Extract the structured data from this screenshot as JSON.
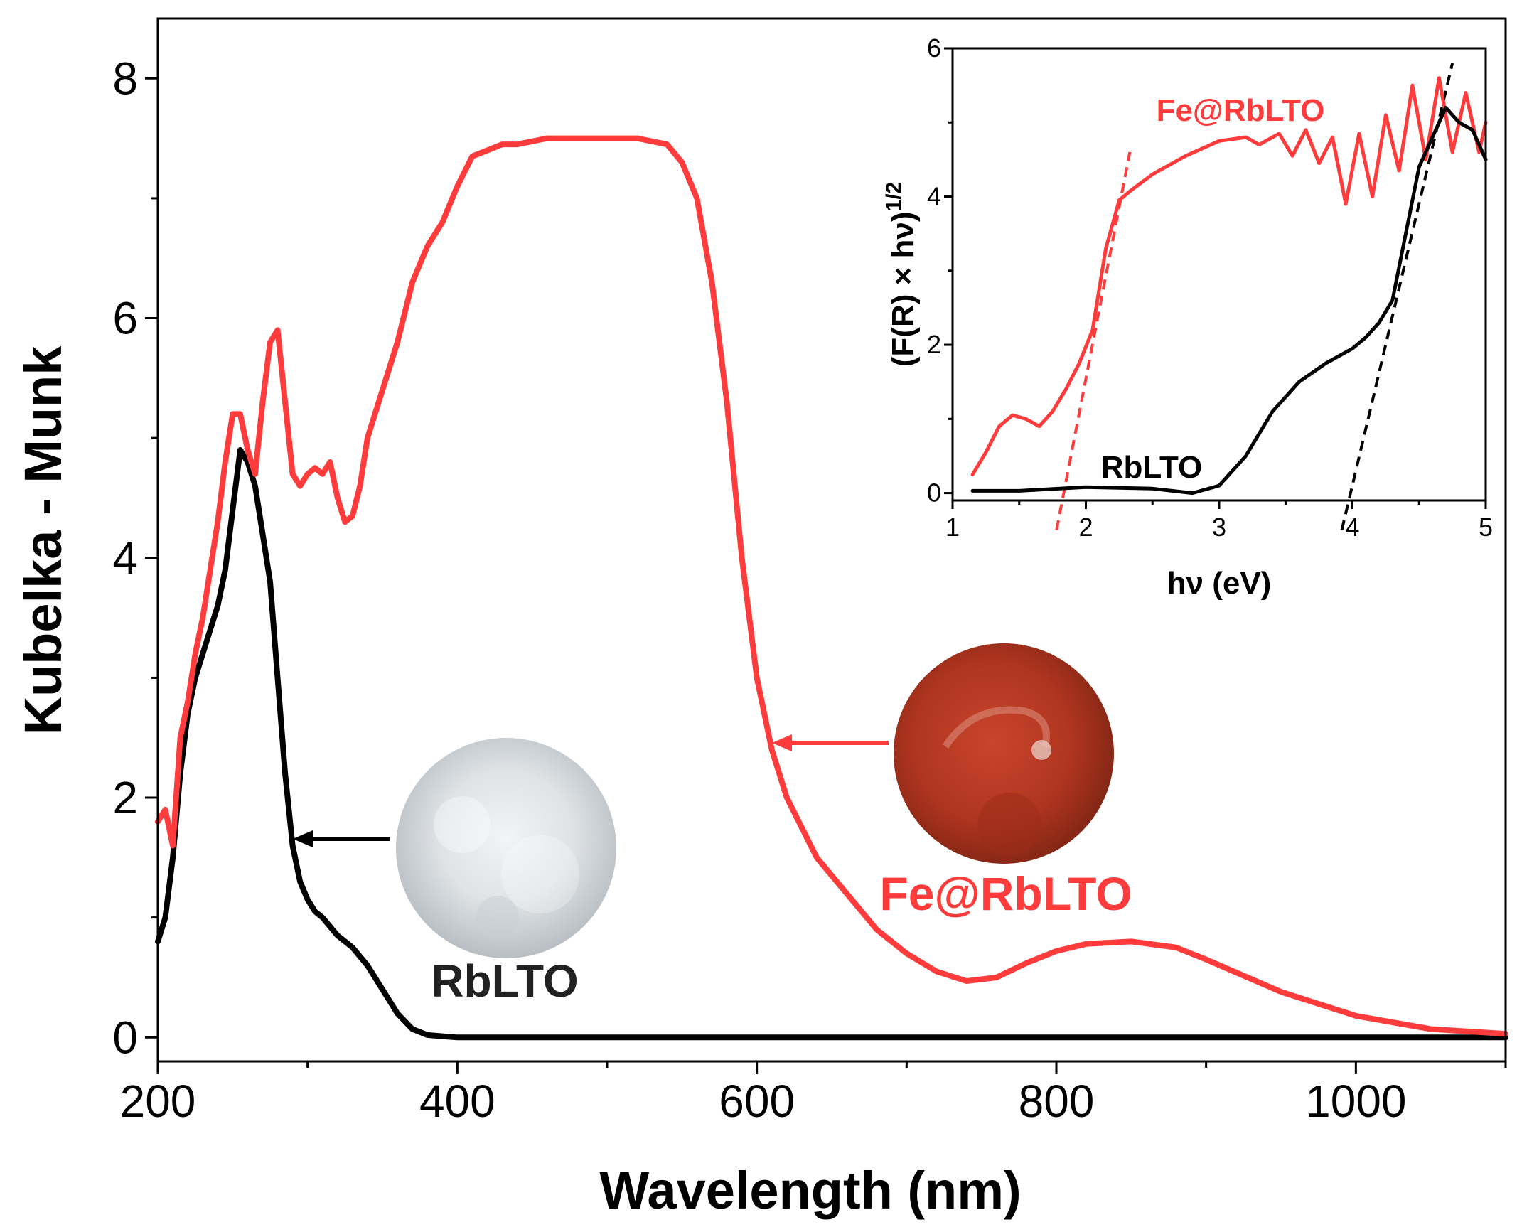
{
  "chart_data": [
    {
      "type": "line",
      "xlabel": "Wavelength (nm)",
      "ylabel": "Kubelka - Munk",
      "xlim": [
        200,
        1100
      ],
      "ylim": [
        -0.2,
        8.5
      ],
      "xticks": [
        200,
        400,
        600,
        800,
        1000
      ],
      "yticks": [
        0,
        2,
        4,
        6,
        8
      ],
      "grid": false,
      "series": [
        {
          "name": "RbLTO",
          "color": "#000000",
          "x": [
            200,
            205,
            210,
            215,
            220,
            225,
            230,
            235,
            240,
            245,
            250,
            255,
            260,
            265,
            270,
            275,
            280,
            285,
            290,
            295,
            300,
            305,
            310,
            320,
            330,
            340,
            350,
            360,
            370,
            380,
            390,
            400,
            420,
            450,
            500,
            600,
            700,
            800,
            900,
            1000,
            1100
          ],
          "y": [
            0.8,
            1.0,
            1.5,
            2.2,
            2.7,
            3.0,
            3.2,
            3.4,
            3.6,
            3.9,
            4.4,
            4.9,
            4.8,
            4.6,
            4.2,
            3.8,
            3.0,
            2.2,
            1.6,
            1.3,
            1.15,
            1.05,
            1.0,
            0.85,
            0.75,
            0.6,
            0.4,
            0.2,
            0.07,
            0.02,
            0.01,
            0.0,
            0.0,
            0.0,
            0.0,
            0.0,
            0.0,
            0.0,
            0.0,
            0.0,
            0.0
          ]
        },
        {
          "name": "Fe@RbLTO",
          "color": "#ff3b3b",
          "x": [
            200,
            205,
            210,
            215,
            220,
            225,
            230,
            235,
            240,
            245,
            250,
            255,
            260,
            265,
            270,
            275,
            280,
            285,
            290,
            295,
            300,
            305,
            310,
            315,
            320,
            325,
            330,
            335,
            340,
            350,
            360,
            370,
            380,
            390,
            400,
            410,
            420,
            430,
            440,
            460,
            480,
            500,
            520,
            540,
            550,
            560,
            570,
            580,
            590,
            600,
            610,
            620,
            640,
            660,
            680,
            700,
            720,
            740,
            760,
            780,
            800,
            820,
            850,
            880,
            900,
            950,
            1000,
            1050,
            1100
          ],
          "y": [
            1.8,
            1.9,
            1.6,
            2.5,
            2.8,
            3.2,
            3.5,
            3.9,
            4.3,
            4.8,
            5.2,
            5.2,
            4.9,
            4.7,
            5.3,
            5.8,
            5.9,
            5.3,
            4.7,
            4.6,
            4.7,
            4.75,
            4.7,
            4.8,
            4.5,
            4.3,
            4.35,
            4.6,
            5.0,
            5.4,
            5.8,
            6.3,
            6.6,
            6.8,
            7.1,
            7.35,
            7.4,
            7.45,
            7.45,
            7.5,
            7.5,
            7.5,
            7.5,
            7.45,
            7.3,
            7.0,
            6.3,
            5.3,
            4.0,
            3.0,
            2.4,
            2.0,
            1.5,
            1.2,
            0.9,
            0.7,
            0.55,
            0.47,
            0.5,
            0.62,
            0.72,
            0.78,
            0.8,
            0.75,
            0.65,
            0.38,
            0.18,
            0.07,
            0.03
          ]
        }
      ]
    },
    {
      "type": "line",
      "xlabel": "hν (eV)",
      "ylabel": "(F(R) × hν)",
      "ylabel_sup": "1/2",
      "xlim": [
        1,
        5
      ],
      "ylim": [
        -0.1,
        6
      ],
      "xticks": [
        1,
        2,
        3,
        4,
        5
      ],
      "yticks": [
        0,
        2,
        4,
        6
      ],
      "grid": false,
      "series": [
        {
          "name": "Fe@RbLTO",
          "color": "#ff3b3b",
          "x": [
            1.15,
            1.25,
            1.35,
            1.45,
            1.55,
            1.65,
            1.75,
            1.85,
            1.95,
            2.05,
            2.15,
            2.25,
            2.35,
            2.5,
            2.75,
            3.0,
            3.2,
            3.3,
            3.45,
            3.55,
            3.65,
            3.75,
            3.85,
            3.95,
            4.05,
            4.15,
            4.25,
            4.35,
            4.45,
            4.55,
            4.65,
            4.75,
            4.85,
            4.95,
            5.0
          ],
          "y": [
            0.25,
            0.55,
            0.9,
            1.05,
            1.0,
            0.9,
            1.1,
            1.4,
            1.75,
            2.2,
            3.3,
            3.95,
            4.1,
            4.3,
            4.55,
            4.75,
            4.8,
            4.7,
            4.85,
            4.55,
            4.9,
            4.45,
            4.8,
            3.9,
            4.85,
            4.0,
            5.1,
            4.35,
            5.5,
            4.5,
            5.6,
            4.6,
            5.4,
            4.6,
            5.0
          ]
        },
        {
          "name": "RbLTO",
          "color": "#000000",
          "x": [
            1.15,
            1.5,
            2.0,
            2.5,
            2.8,
            3.0,
            3.2,
            3.4,
            3.6,
            3.8,
            4.0,
            4.1,
            4.2,
            4.3,
            4.4,
            4.5,
            4.6,
            4.7,
            4.8,
            4.9,
            5.0
          ],
          "y": [
            0.03,
            0.03,
            0.08,
            0.06,
            0.0,
            0.1,
            0.5,
            1.1,
            1.5,
            1.75,
            1.95,
            2.1,
            2.3,
            2.6,
            3.5,
            4.4,
            4.8,
            5.2,
            5.0,
            4.9,
            4.5
          ]
        }
      ],
      "fit_lines": [
        {
          "color": "#ff3b3b",
          "x": [
            1.78,
            2.33
          ],
          "y": [
            -0.5,
            4.6
          ]
        },
        {
          "color": "#000000",
          "x": [
            3.92,
            4.75
          ],
          "y": [
            -0.5,
            5.8
          ]
        }
      ],
      "annotations": [
        {
          "text": "Fe@RbLTO",
          "color": "#ff3b3b"
        },
        {
          "text": "RbLTO",
          "color": "#000000"
        }
      ]
    }
  ],
  "annotations": {
    "rblto_label": "RbLTO",
    "fe_label": "Fe@RbLTO"
  },
  "photos": {
    "rblto_icon": "white-powder-photo-icon",
    "fe_icon": "red-powder-photo-icon"
  }
}
